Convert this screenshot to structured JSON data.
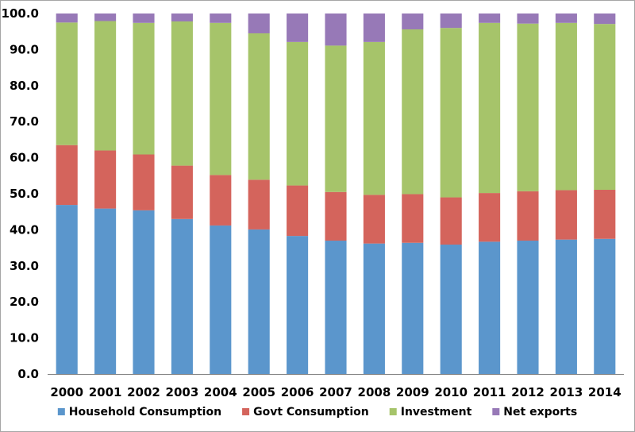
{
  "chart_data": {
    "type": "bar",
    "stacked": true,
    "categories": [
      "2000",
      "2001",
      "2002",
      "2003",
      "2004",
      "2005",
      "2006",
      "2007",
      "2008",
      "2009",
      "2010",
      "2011",
      "2012",
      "2013",
      "2014"
    ],
    "ylim": [
      0,
      100
    ],
    "yticks": [
      "0.0",
      "10.0",
      "20.0",
      "30.0",
      "40.0",
      "50.0",
      "60.0",
      "70.0",
      "80.0",
      "90.0",
      "100.0"
    ],
    "grid": false,
    "legend_position": "bottom",
    "series": [
      {
        "name": "Household Consumption",
        "color": "#5b96cc",
        "values": [
          46.9,
          45.9,
          45.4,
          43.0,
          41.2,
          40.1,
          38.3,
          37.0,
          36.2,
          36.4,
          35.9,
          36.7,
          37.0,
          37.3,
          37.5
        ]
      },
      {
        "name": "Govt Consumption",
        "color": "#d4645c",
        "values": [
          16.6,
          16.1,
          15.5,
          14.8,
          14.0,
          13.8,
          14.0,
          13.5,
          13.5,
          13.5,
          13.1,
          13.5,
          13.7,
          13.7,
          13.6
        ]
      },
      {
        "name": "Investment",
        "color": "#a6c46a",
        "values": [
          34.0,
          35.9,
          36.5,
          40.0,
          42.2,
          40.6,
          39.8,
          40.6,
          42.4,
          45.7,
          47.0,
          47.2,
          46.5,
          46.4,
          46.0
        ]
      },
      {
        "name": "Net exports",
        "color": "#9779b7",
        "values": [
          2.5,
          2.1,
          2.6,
          2.2,
          2.6,
          5.5,
          7.9,
          8.9,
          7.9,
          4.4,
          4.0,
          2.6,
          2.8,
          2.6,
          2.9
        ]
      }
    ]
  }
}
